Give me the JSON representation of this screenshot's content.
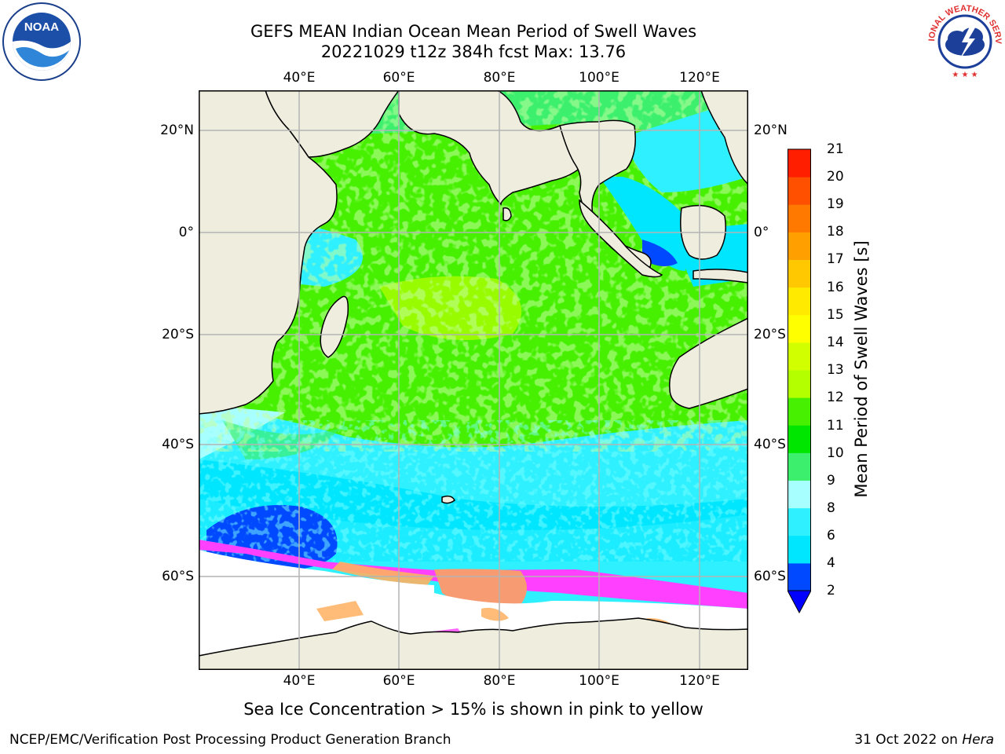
{
  "title": {
    "line1": "GEFS MEAN Indian Ocean Mean Period of Swell Waves",
    "line2": "20221029 t12z 384h fcst   Max: 13.76"
  },
  "map": {
    "lon_ticks": [
      "40°E",
      "60°E",
      "80°E",
      "100°E",
      "120°E"
    ],
    "lat_ticks": [
      "20°N",
      "0°",
      "20°S",
      "40°S",
      "60°S"
    ],
    "lon_range": [
      20,
      130
    ],
    "lat_range": [
      -68,
      26
    ],
    "colors": {
      "land": "#efedde",
      "ice_region": "#ffffff",
      "gridline": "#b4b4b4",
      "coast": "#000000"
    }
  },
  "colorbar": {
    "label": "Mean Period of Swell Waves [s]",
    "tick_labels": [
      "21",
      "20",
      "19",
      "18",
      "17",
      "16",
      "15",
      "14",
      "13",
      "12",
      "11",
      "10",
      "9",
      "8",
      "6",
      "4",
      "2"
    ],
    "levels": [
      2,
      4,
      6,
      8,
      9,
      10,
      11,
      12,
      13,
      14,
      15,
      16,
      17,
      18,
      19,
      20,
      21
    ],
    "colors": [
      "#0049ff",
      "#00e6ff",
      "#2ff0ff",
      "#a8ffff",
      "#3cf06e",
      "#00e600",
      "#46f000",
      "#b4ff00",
      "#d2ff00",
      "#ffff00",
      "#ffea00",
      "#ffc800",
      "#ffa000",
      "#ff7800",
      "#ff5000",
      "#ff1e00"
    ],
    "under_color": "#0000ff"
  },
  "footnote": "Sea Ice Concentration > 15% is shown in pink to yellow",
  "credit": "NCEP/EMC/Verification Post Processing Product Generation Branch",
  "date": {
    "text": "31 Oct 2022 on",
    "machine": "Hera"
  },
  "logos": {
    "noaa": "NOAA",
    "nws_arc": "NATIONAL WEATHER SERVICE"
  }
}
